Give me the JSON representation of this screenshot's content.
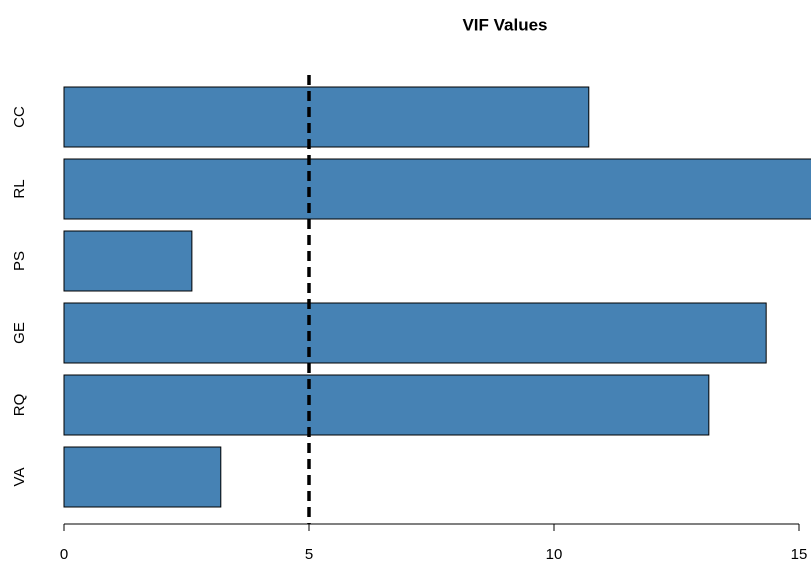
{
  "chart_data": {
    "type": "barh",
    "title": "VIF Values",
    "categories": [
      "VA",
      "RQ",
      "GE",
      "PS",
      "RL",
      "CC"
    ],
    "values": [
      3.2,
      13.16,
      14.33,
      2.61,
      15.3,
      10.71
    ],
    "color": "#4682b4",
    "xlim": [
      0,
      15
    ],
    "xticks": [
      0,
      5,
      10,
      15
    ],
    "reference_line": 5
  }
}
